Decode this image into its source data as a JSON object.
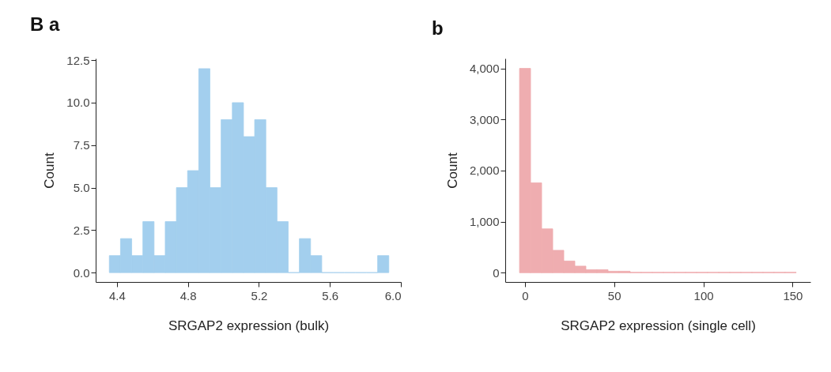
{
  "chart_data": [
    {
      "type": "histogram",
      "title": "B a",
      "xlabel": "SRGAP2 expression (bulk)",
      "ylabel": "Count",
      "bins": [
        4.357,
        4.42,
        4.483,
        4.546,
        4.609,
        4.672,
        4.735,
        4.798,
        4.861,
        4.924,
        4.987,
        5.05,
        5.113,
        5.176,
        5.239,
        5.302,
        5.365,
        5.428,
        5.491,
        5.554,
        5.617,
        5.68,
        5.743,
        5.806,
        5.869,
        5.932
      ],
      "values": [
        1,
        2,
        1,
        3,
        1,
        3,
        5,
        6,
        12,
        5,
        9,
        10,
        8,
        9,
        5,
        3,
        0,
        2,
        1,
        0,
        0,
        0,
        0,
        0,
        1
      ],
      "color": "#a3cfee",
      "xlim": [
        4.28,
        6.0
      ],
      "xticks": [
        4.4,
        4.8,
        5.2,
        5.6,
        {
          "value": 6,
          "label": "6.0"
        }
      ],
      "ylim": [
        -0.55,
        12.6
      ],
      "yticks": [
        {
          "value": 0,
          "label": "0.0"
        },
        2.5,
        {
          "value": 5,
          "label": "5.0"
        },
        7.5,
        {
          "value": 10,
          "label": "10.0"
        },
        12.5
      ]
    },
    {
      "type": "histogram",
      "title": "b",
      "xlabel": "SRGAP2 expression (single cell)",
      "ylabel": "Count",
      "bins": [
        -3,
        3.2,
        9.4,
        15.6,
        21.8,
        28,
        34.2,
        40.4,
        46.6,
        52.8,
        59,
        65.2,
        71.4,
        77.6,
        83.8,
        90,
        96.2,
        102.4,
        108.6,
        114.8,
        121,
        127.2,
        133.4,
        139.6,
        145.8,
        152
      ],
      "values": [
        4000,
        1760,
        860,
        440,
        230,
        130,
        60,
        60,
        30,
        30,
        10,
        10,
        10,
        10,
        10,
        10,
        10,
        10,
        10,
        10,
        10,
        10,
        10,
        10,
        10
      ],
      "color": "#efadb0",
      "xlim": [
        -11,
        160
      ],
      "xticks": [
        0,
        50,
        100,
        150
      ],
      "ylim": [
        -180,
        4195
      ],
      "yticks": [
        0,
        {
          "value": 1000,
          "label": "1,000"
        },
        {
          "value": 2000,
          "label": "2,000"
        },
        {
          "value": 3000,
          "label": "3,000"
        },
        {
          "value": 4000,
          "label": "4,000"
        }
      ]
    }
  ]
}
